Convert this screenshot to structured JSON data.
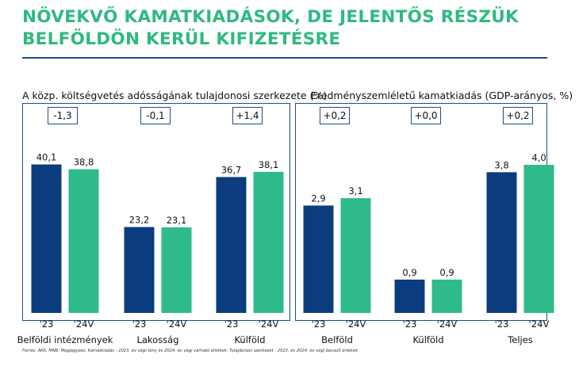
{
  "title_line1": "NÖVEKVŐ KAMATKIADÁSOK, DE JELENTŐS RÉSZÜK",
  "title_line2": "BELFÖLDÖN KERÜL KIFIZETÉSRE",
  "source": "Forrás: ÁKK, MNB; Megjegyzés: Kamatkiadás - 2023. év végi tény és 2024. év végi várható értékek; Tulajdonosi szerkezet - 2023. és 2024. év végi becsült értékek",
  "colors": {
    "title": "#2fb980",
    "y2023": "#0b3c7d",
    "y2024": "#2fba8a",
    "frame": "#1f4d8f"
  },
  "chart_data": [
    {
      "type": "bar",
      "title": "A közp. költségvetés adósságának tulajdonosi szerkezete (%)",
      "categories": [
        "Belföldi intézmények",
        "Lakosság",
        "Külföld"
      ],
      "x_tick_labels": [
        "'23",
        "'24V"
      ],
      "deltas": [
        "-1,3",
        "-0,1",
        "+1,4"
      ],
      "series": [
        {
          "name": "'23",
          "values": [
            40.1,
            23.2,
            36.7
          ],
          "labels": [
            "40,1",
            "23,2",
            "36,7"
          ]
        },
        {
          "name": "'24V",
          "values": [
            38.8,
            23.1,
            38.1
          ],
          "labels": [
            "38,8",
            "23,1",
            "38,1"
          ]
        }
      ],
      "ylim": [
        0,
        46
      ]
    },
    {
      "type": "bar",
      "title": "Eredményszemléletű kamatkiadás (GDP-arányos, %)",
      "categories": [
        "Belföld",
        "Külföld",
        "Teljes"
      ],
      "x_tick_labels": [
        "'23",
        "'24V"
      ],
      "deltas": [
        "+0,2",
        "+0,0",
        "+0,2"
      ],
      "series": [
        {
          "name": "'23",
          "values": [
            2.9,
            0.9,
            3.8
          ],
          "labels": [
            "2,9",
            "0,9",
            "3,8"
          ]
        },
        {
          "name": "'24V",
          "values": [
            3.1,
            0.9,
            4.0
          ],
          "labels": [
            "3,1",
            "0,9",
            "4,0"
          ]
        }
      ],
      "ylim": [
        0,
        4.6
      ]
    }
  ]
}
